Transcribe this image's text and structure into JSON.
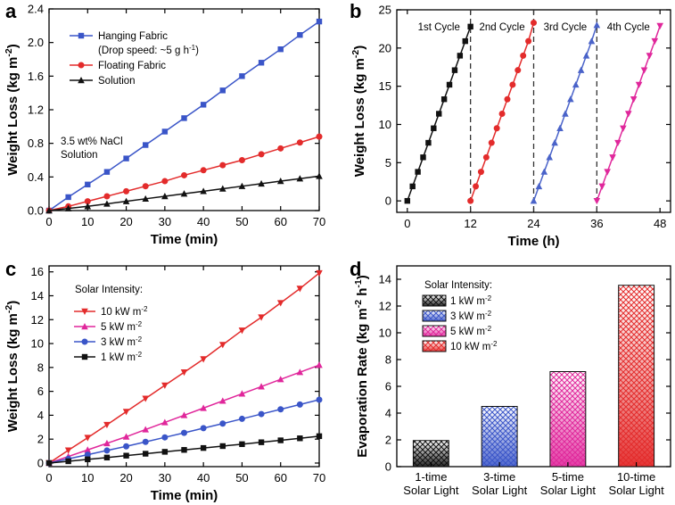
{
  "colors": {
    "blue": "#3a55c8",
    "red": "#e32b2b",
    "black": "#111111",
    "magenta": "#e0279b",
    "lightblue": "#4a63c9"
  },
  "chart_data": [
    {
      "panel": "a",
      "type": "line",
      "xlabel": "Time (min)",
      "ylabel": "Weight Loss (kg m-2)",
      "xlim": [
        0,
        70
      ],
      "ylim": [
        0,
        2.4
      ],
      "xticks": [
        0,
        10,
        20,
        30,
        40,
        50,
        60,
        70
      ],
      "yticks": [
        "0.0",
        "0.4",
        "0.8",
        "1.2",
        "1.6",
        "2.0",
        "2.4"
      ],
      "x": [
        0,
        5,
        10,
        15,
        20,
        25,
        30,
        35,
        40,
        45,
        50,
        55,
        60,
        65,
        70
      ],
      "annotation": [
        "3.5 wt% NaCl",
        "Solution"
      ],
      "series": [
        {
          "name": "Hanging Fabric",
          "note": "(Drop speed: ~5 g h-1)",
          "marker": "square",
          "color": "#3a55c8",
          "values": [
            0,
            0.16,
            0.31,
            0.46,
            0.62,
            0.78,
            0.94,
            1.1,
            1.26,
            1.43,
            1.6,
            1.76,
            1.92,
            2.09,
            2.25
          ]
        },
        {
          "name": "Floating Fabric",
          "marker": "circle",
          "color": "#e32b2b",
          "values": [
            0,
            0.05,
            0.11,
            0.17,
            0.23,
            0.29,
            0.35,
            0.42,
            0.48,
            0.54,
            0.6,
            0.67,
            0.74,
            0.81,
            0.88
          ]
        },
        {
          "name": "Solution",
          "marker": "triangle",
          "color": "#111111",
          "values": [
            0,
            0.025,
            0.05,
            0.08,
            0.11,
            0.14,
            0.17,
            0.2,
            0.23,
            0.26,
            0.29,
            0.32,
            0.35,
            0.38,
            0.41
          ]
        }
      ]
    },
    {
      "panel": "b",
      "type": "line",
      "xlabel": "Time (h)",
      "ylabel": "Weight Loss (kg m-2)",
      "xlim": [
        -2,
        50
      ],
      "ylim": [
        -1.5,
        25
      ],
      "xticks": [
        0,
        12,
        24,
        36,
        48
      ],
      "yticks": [
        0,
        5,
        10,
        15,
        20,
        25
      ],
      "dividers": [
        12,
        24,
        36
      ],
      "cycle_labels": [
        "1st Cycle",
        "2nd Cycle",
        "3rd Cycle",
        "4th Cycle"
      ],
      "series": [
        {
          "name": "1st Cycle",
          "marker": "square",
          "color": "#111111",
          "start": 0,
          "values": [
            0,
            1.9,
            3.8,
            5.7,
            7.6,
            9.5,
            11.4,
            13.3,
            15.2,
            17.1,
            19.0,
            20.9,
            22.8
          ]
        },
        {
          "name": "2nd Cycle",
          "marker": "circle",
          "color": "#e32b2b",
          "start": 12,
          "values": [
            0,
            1.9,
            3.8,
            5.7,
            7.6,
            9.5,
            11.4,
            13.3,
            15.2,
            17.1,
            19.0,
            20.9,
            23.3
          ]
        },
        {
          "name": "3rd Cycle",
          "marker": "triangle",
          "color": "#4a63c9",
          "start": 24,
          "values": [
            0,
            1.9,
            3.8,
            5.7,
            7.6,
            9.5,
            11.4,
            13.3,
            15.2,
            17.1,
            19.0,
            20.9,
            23.0
          ]
        },
        {
          "name": "4th Cycle",
          "marker": "triangle-down",
          "color": "#e0279b",
          "start": 36,
          "values": [
            0,
            1.9,
            3.8,
            5.7,
            7.6,
            9.5,
            11.4,
            13.3,
            15.2,
            17.1,
            19.0,
            20.9,
            22.9
          ]
        }
      ]
    },
    {
      "panel": "c",
      "type": "line",
      "xlabel": "Time (min)",
      "ylabel": "Weight Loss (kg m-2)",
      "xlim": [
        0,
        70
      ],
      "ylim": [
        -0.3,
        16.5
      ],
      "xticks": [
        0,
        10,
        20,
        30,
        40,
        50,
        60,
        70
      ],
      "yticks": [
        0,
        2,
        4,
        6,
        8,
        10,
        12,
        14,
        16
      ],
      "x": [
        0,
        5,
        10,
        15,
        20,
        25,
        30,
        35,
        40,
        45,
        50,
        55,
        60,
        65,
        70
      ],
      "legend_title": "Solar Intensity:",
      "series": [
        {
          "name": "10 kW m-2",
          "marker": "triangle-down",
          "color": "#e32b2b",
          "values": [
            0,
            1.07,
            2.12,
            3.2,
            4.3,
            5.4,
            6.5,
            7.6,
            8.7,
            9.9,
            11.1,
            12.2,
            13.4,
            14.6,
            15.9
          ]
        },
        {
          "name": "5 kW m-2",
          "marker": "triangle",
          "color": "#e0279b",
          "values": [
            0,
            0.55,
            1.1,
            1.65,
            2.2,
            2.8,
            3.4,
            4.0,
            4.6,
            5.2,
            5.8,
            6.4,
            7.0,
            7.6,
            8.2
          ]
        },
        {
          "name": "3 kW m-2",
          "marker": "circle",
          "color": "#3a55c8",
          "values": [
            0,
            0.35,
            0.7,
            1.05,
            1.4,
            1.77,
            2.15,
            2.53,
            2.92,
            3.3,
            3.7,
            4.1,
            4.5,
            4.9,
            5.3
          ]
        },
        {
          "name": "1 kW m-2",
          "marker": "square",
          "color": "#111111",
          "values": [
            0,
            0.15,
            0.31,
            0.46,
            0.62,
            0.78,
            0.94,
            1.1,
            1.26,
            1.42,
            1.58,
            1.74,
            1.9,
            2.07,
            2.25
          ]
        }
      ]
    },
    {
      "panel": "d",
      "type": "bar",
      "ylabel": "Evaporation Rate (kg m-2 h-1)",
      "ylim": [
        0,
        15
      ],
      "yticks": [
        0,
        2,
        4,
        6,
        8,
        10,
        12,
        14
      ],
      "categories": [
        [
          "1-time",
          "Solar Light"
        ],
        [
          "3-time",
          "Solar Light"
        ],
        [
          "5-time",
          "Solar Light"
        ],
        [
          "10-time",
          "Solar Light"
        ]
      ],
      "values": [
        1.95,
        4.5,
        7.1,
        13.55
      ],
      "legend_title": "Solar Intensity:",
      "series": [
        {
          "name": "1 kW m-2",
          "color": "#111111"
        },
        {
          "name": "3 kW m-2",
          "color": "#3a55c8"
        },
        {
          "name": "5 kW m-2",
          "color": "#e0279b"
        },
        {
          "name": "10 kW m-2",
          "color": "#e32b2b"
        }
      ]
    }
  ]
}
